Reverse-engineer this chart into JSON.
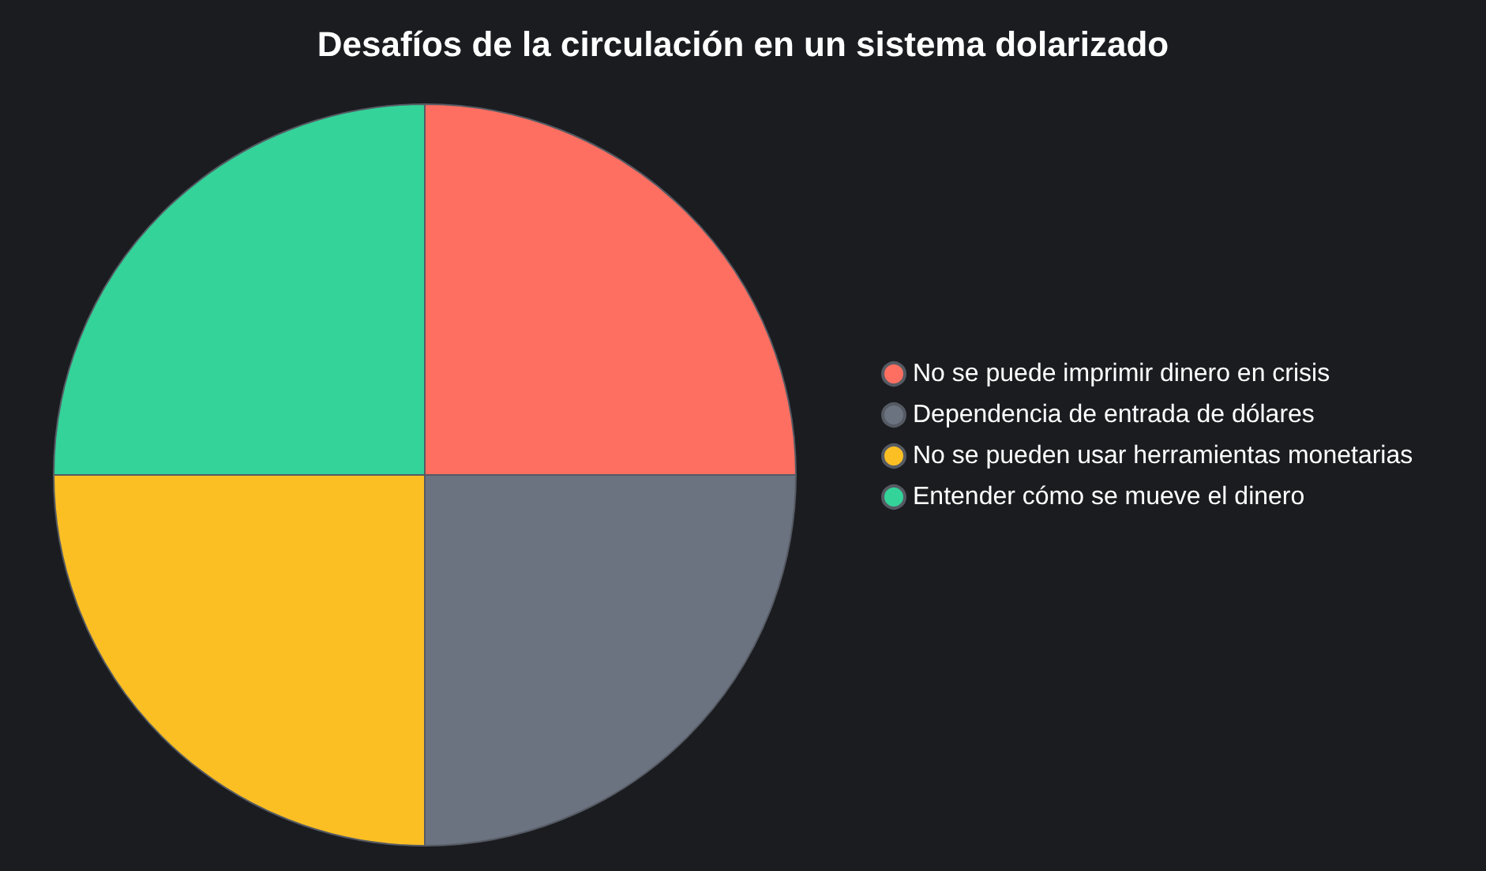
{
  "chart_data": {
    "type": "pie",
    "title": "Desafíos de la circulación en un sistema dolarizado",
    "categories": [
      "No se puede imprimir dinero en crisis",
      "Dependencia de entrada de dólares",
      "No se pueden usar herramientas monetarias",
      "Entender cómo se mueve el dinero"
    ],
    "values": [
      25,
      25,
      25,
      25
    ],
    "colors": [
      "#ff6f61",
      "#6b7280",
      "#fbbf24",
      "#34d399"
    ],
    "legend": "right"
  }
}
